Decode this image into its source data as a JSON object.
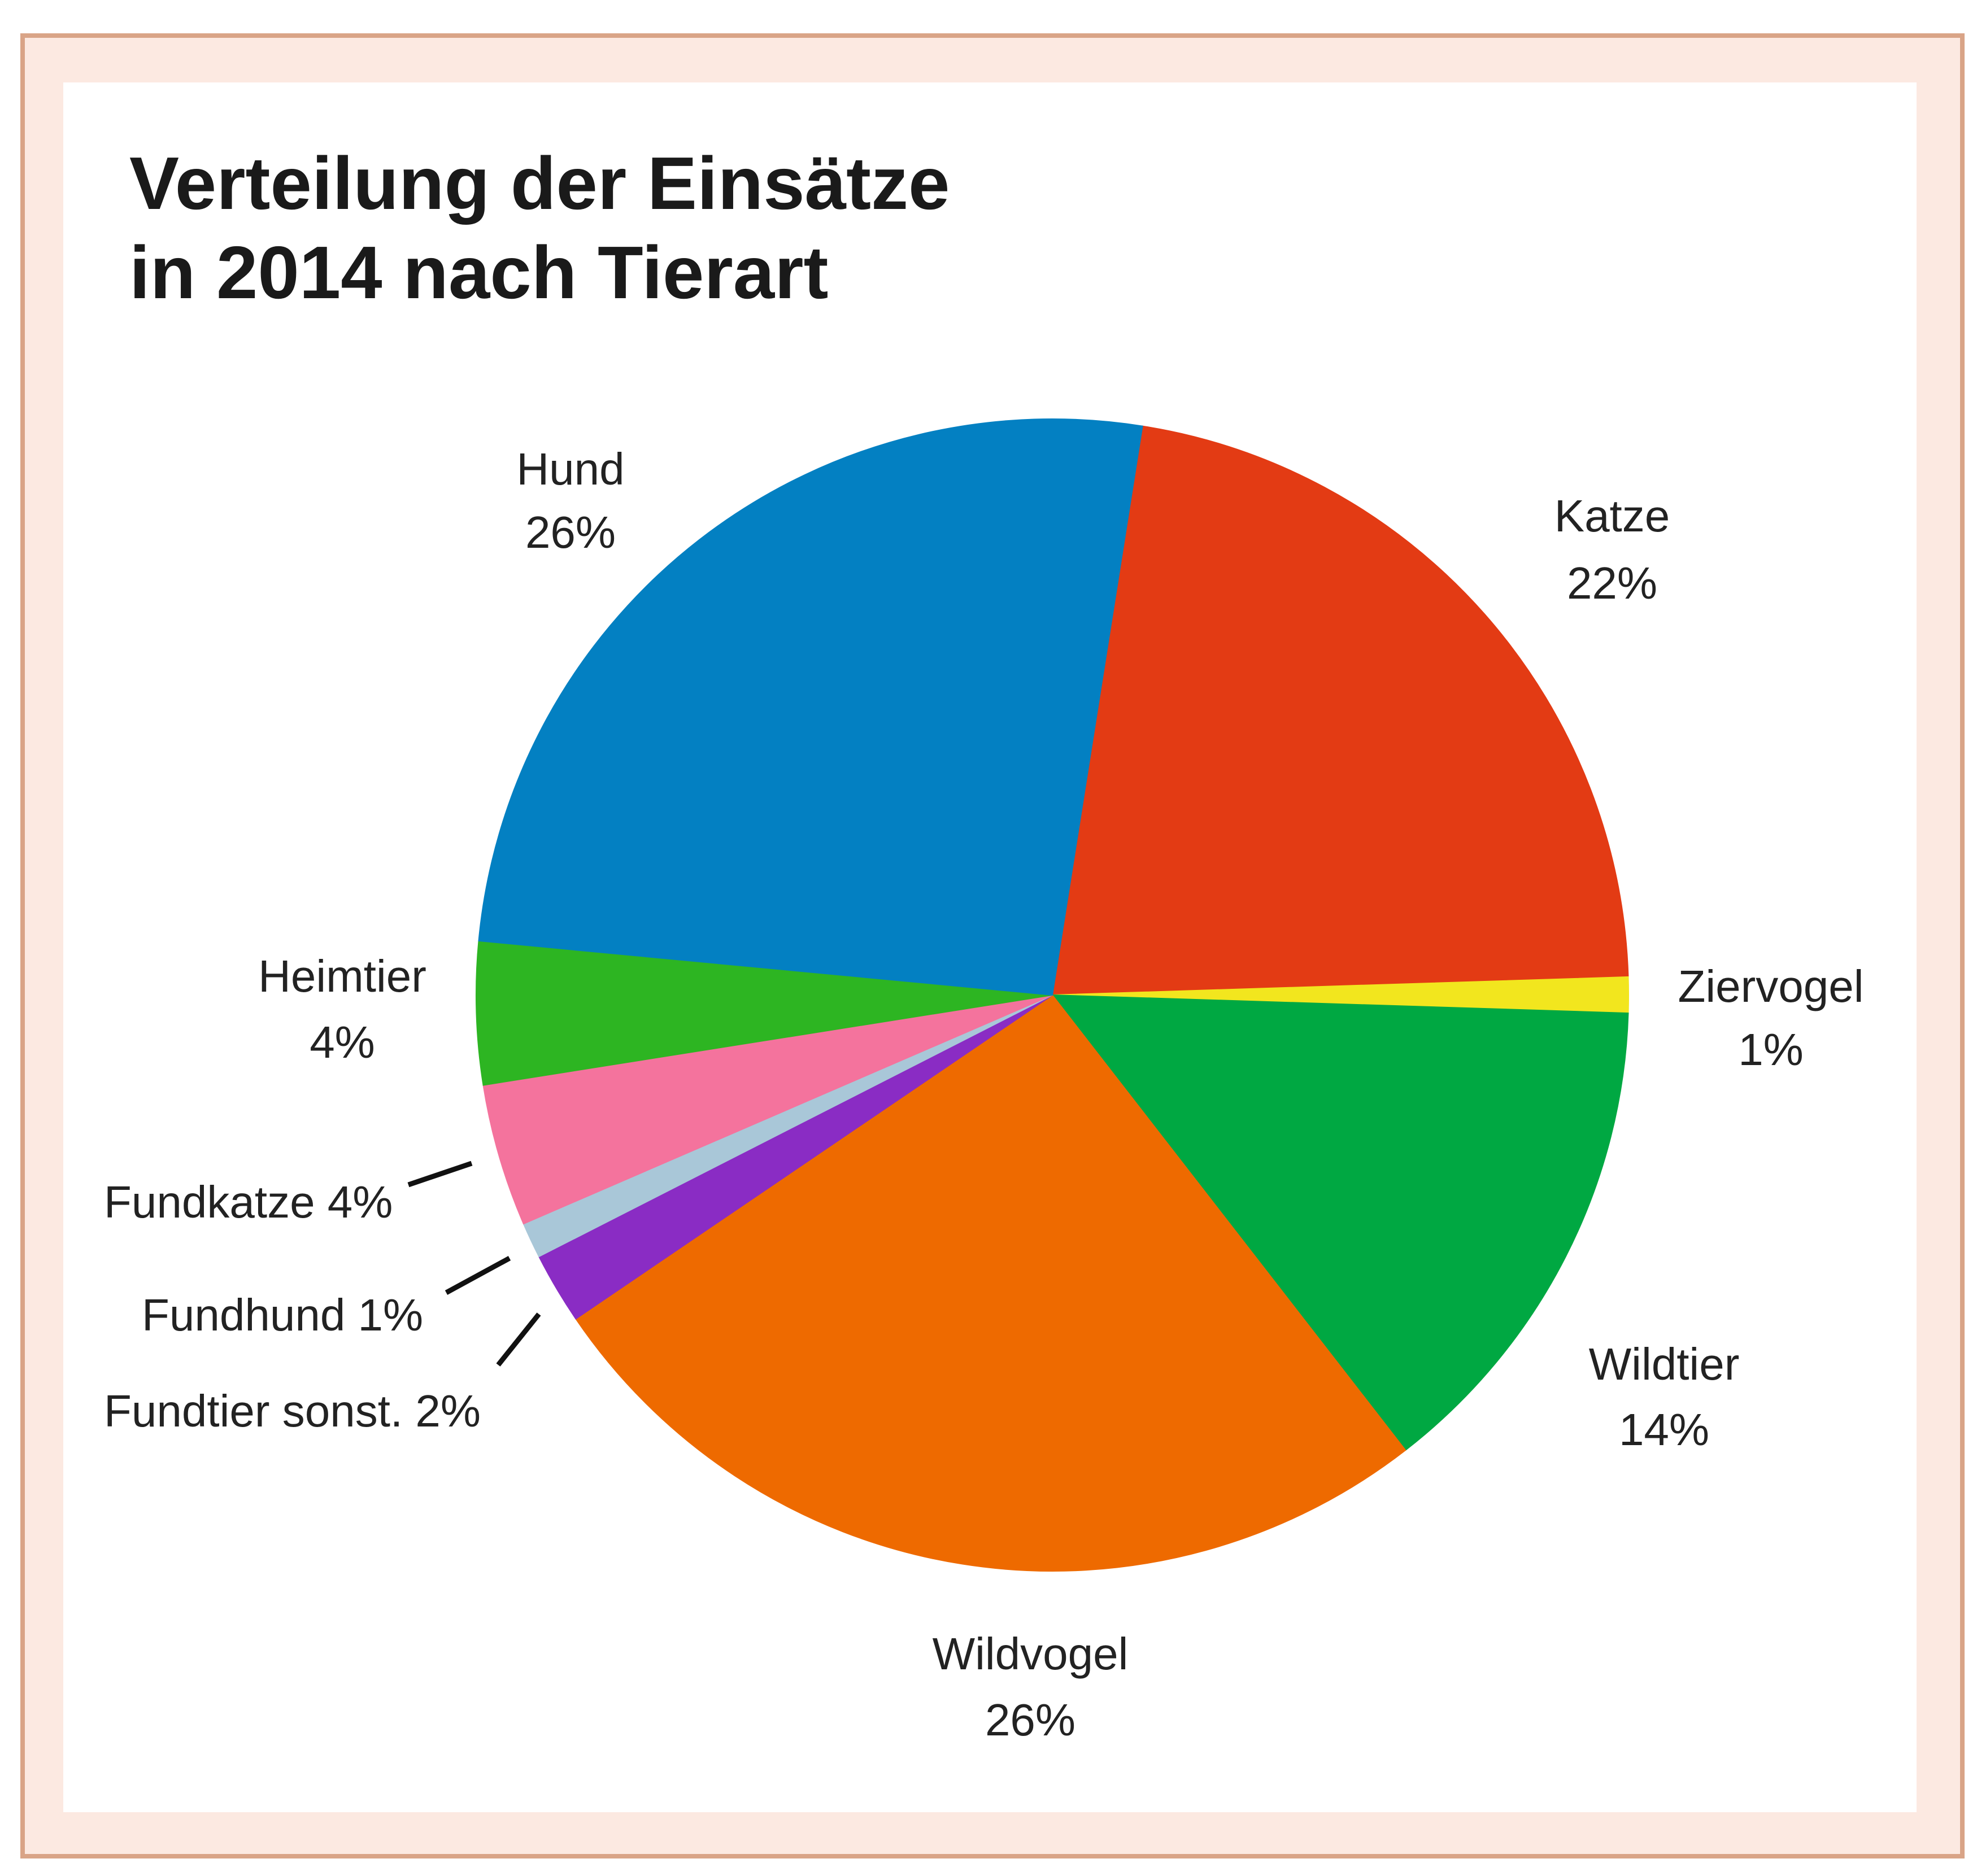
{
  "chart_data": {
    "type": "pie",
    "title": [
      "Verteilung der Einsätze",
      "in 2014 nach Tierart"
    ],
    "unit": "%",
    "slices": [
      {
        "name": "Katze",
        "value": 22,
        "label": "22%",
        "color": "#e33b14"
      },
      {
        "name": "Ziervogel",
        "value": 1,
        "label": "1%",
        "color": "#f2e61e"
      },
      {
        "name": "Wildtier",
        "value": 14,
        "label": "14%",
        "color": "#00a842"
      },
      {
        "name": "Wildvogel",
        "value": 26,
        "label": "26%",
        "color": "#ee6a00"
      },
      {
        "name": "Fundtier sonst.",
        "value": 2,
        "label": "2%",
        "color": "#8a2cc4"
      },
      {
        "name": "Fundhund",
        "value": 1,
        "label": "1%",
        "color": "#a9c7d8"
      },
      {
        "name": "Fundkatze",
        "value": 4,
        "label": "4%",
        "color": "#f4739d"
      },
      {
        "name": "Heimtier",
        "value": 4,
        "label": "4%",
        "color": "#2db522"
      },
      {
        "name": "Hund",
        "value": 26,
        "label": "26%",
        "color": "#0380c2"
      }
    ]
  },
  "colors": {
    "frame": "#d9a487",
    "frame_band": "#fce9e1",
    "panel": "#ffffff"
  }
}
